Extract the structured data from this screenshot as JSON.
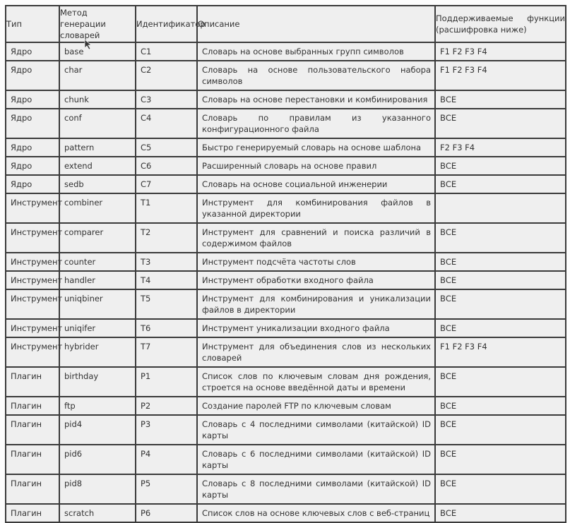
{
  "headers": [
    "Тип",
    "Метод генерации словарей",
    "Идентификатор",
    "Описание",
    "Поддерживаемые функции (расшифровка ниже)"
  ],
  "rows": [
    [
      "Ядро",
      "base",
      "C1",
      "Словарь на основе выбранных групп символов",
      "F1 F2 F3 F4"
    ],
    [
      "Ядро",
      "char",
      "C2",
      "Словарь на основе пользовательского набора символов",
      "F1 F2 F3 F4"
    ],
    [
      "Ядро",
      "chunk",
      "C3",
      "Словарь на основе перестановки и комбинирования",
      "ВСЕ"
    ],
    [
      "Ядро",
      "conf",
      "C4",
      "Словарь по правилам из указанного конфигурационного файла",
      "ВСЕ"
    ],
    [
      "Ядро",
      "pattern",
      "C5",
      "Быстро генерируемый словарь на основе шаблона",
      "F2 F3 F4"
    ],
    [
      "Ядро",
      "extend",
      "C6",
      "Расширенный словарь на основе правил",
      "ВСЕ"
    ],
    [
      "Ядро",
      "sedb",
      "C7",
      "Словарь на основе социальной инженерии",
      "ВСЕ"
    ],
    [
      "Инструмент",
      "combiner",
      "T1",
      "Инструмент для комбинирования файлов в указанной директории",
      ""
    ],
    [
      "Инструмент",
      "comparer",
      "T2",
      "Инструмент для сравнений и поиска различий в содержимом файлов",
      "ВСЕ"
    ],
    [
      "Инструмент",
      "counter",
      "T3",
      "Инструмент подсчёта частоты слов",
      "ВСЕ"
    ],
    [
      "Инструмент",
      "handler",
      "T4",
      "Инструмент обработки входного файла",
      "ВСЕ"
    ],
    [
      "Инструмент",
      "uniqbiner",
      "T5",
      "Инструмент для комбинирования и уникализации файлов в директории",
      "ВСЕ"
    ],
    [
      "Инструмент",
      "uniqifer",
      "T6",
      "Инструмент уникализации входного файла",
      "ВСЕ"
    ],
    [
      "Инструмент",
      "hybrider",
      "T7",
      "Инструмент для объединения слов из нескольких словарей",
      "F1 F2 F3 F4"
    ],
    [
      "Плагин",
      "birthday",
      "P1",
      "Список слов по ключевым словам дня рождения, строется на основе введённой даты и времени",
      "ВСЕ"
    ],
    [
      "Плагин",
      "ftp",
      "P2",
      "Создание паролей FTP по ключевым словам",
      "ВСЕ"
    ],
    [
      "Плагин",
      "pid4",
      "P3",
      "Словарь с 4 последними символами (китайской) ID карты",
      "ВСЕ"
    ],
    [
      "Плагин",
      "pid6",
      "P4",
      "Словарь с 6 последними символами (китайской) ID карты",
      "ВСЕ"
    ],
    [
      "Плагин",
      "pid8",
      "P5",
      "Словарь с 8 последними символами (китайской) ID карты",
      "ВСЕ"
    ],
    [
      "Плагин",
      "scratch",
      "P6",
      "Список слов на основе ключевых слов с веб-страниц",
      "ВСЕ"
    ]
  ]
}
